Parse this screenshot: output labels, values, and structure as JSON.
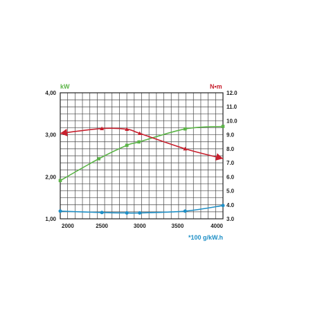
{
  "chart_data": {
    "type": "line",
    "left_axis": {
      "unit_label": "kW",
      "ticks": [
        "1,00",
        "2,00",
        "3,00",
        "4,00"
      ],
      "range": [
        1.0,
        4.0
      ]
    },
    "right_axis": {
      "unit_label": "N•m",
      "ticks": [
        "3.0",
        "4.0",
        "5.0",
        "6.0",
        "7.0",
        "8.0",
        "9.0",
        "10.0",
        "11.0",
        "12.0"
      ],
      "range": [
        3.0,
        12.0
      ]
    },
    "x_axis": {
      "ticks": [
        "2000",
        "2500",
        "3000",
        "3500",
        "4000"
      ],
      "range": [
        1950,
        4100
      ]
    },
    "x_unit_label": "*100 g/kW.h",
    "grid": true,
    "series": [
      {
        "id": "power",
        "axis": "left",
        "color": "#5cb548",
        "marker": "square",
        "x": [
          1950,
          2460,
          2830,
          2990,
          3600,
          4100
        ],
        "y": [
          1.91,
          2.43,
          2.75,
          2.83,
          3.14,
          3.2
        ]
      },
      {
        "id": "torque",
        "axis": "right",
        "color": "#c8202e",
        "marker": "triangle",
        "x": [
          1950,
          2500,
          2830,
          3000,
          3600,
          4100
        ],
        "y": [
          9.1,
          9.45,
          9.4,
          9.1,
          8.0,
          7.3
        ]
      },
      {
        "id": "consumption",
        "axis": "right",
        "color": "#1e8fc6",
        "marker": "circle",
        "x": [
          1950,
          2500,
          2830,
          3000,
          3600,
          4100
        ],
        "y": [
          3.55,
          3.45,
          3.42,
          3.42,
          3.55,
          3.95
        ]
      }
    ]
  }
}
